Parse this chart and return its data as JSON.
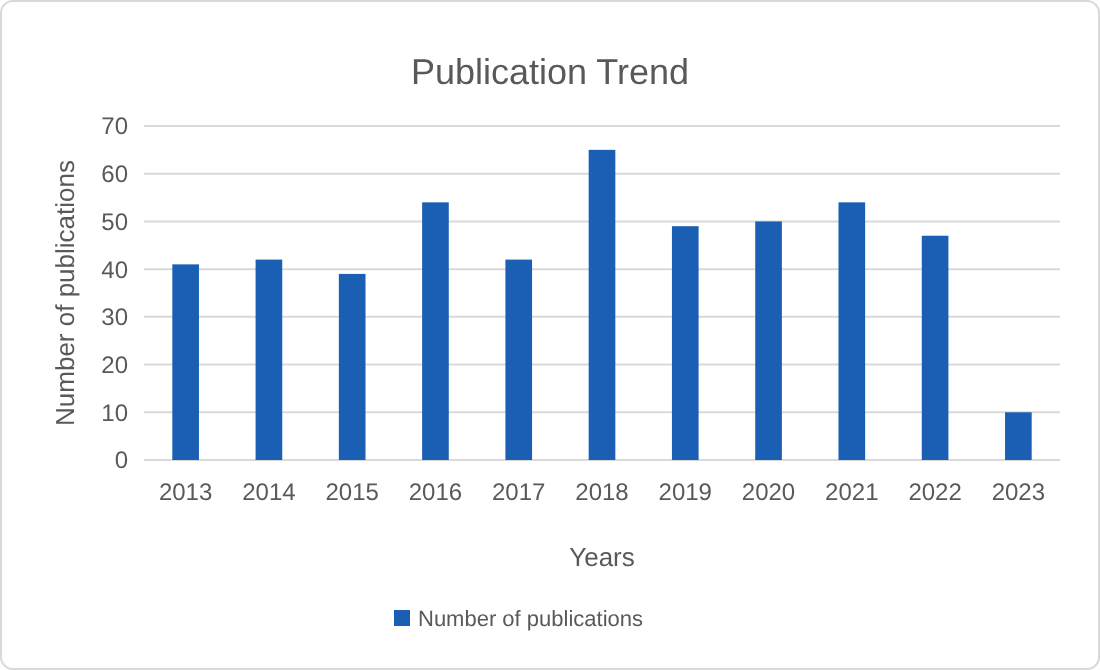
{
  "chart_data": {
    "type": "bar",
    "title": "Publication Trend",
    "xlabel": "Years",
    "ylabel": "Number of publications",
    "categories": [
      "2013",
      "2014",
      "2015",
      "2016",
      "2017",
      "2018",
      "2019",
      "2020",
      "2021",
      "2022",
      "2023"
    ],
    "series": [
      {
        "name": "Number of publications",
        "color": "#1a5fb4",
        "values": [
          41,
          42,
          39,
          54,
          42,
          65,
          49,
          50,
          54,
          47,
          10
        ]
      }
    ],
    "ylim": [
      0,
      70
    ],
    "yticks": [
      0,
      10,
      20,
      30,
      40,
      50,
      60,
      70
    ],
    "grid": "y",
    "legend": "bottom"
  }
}
